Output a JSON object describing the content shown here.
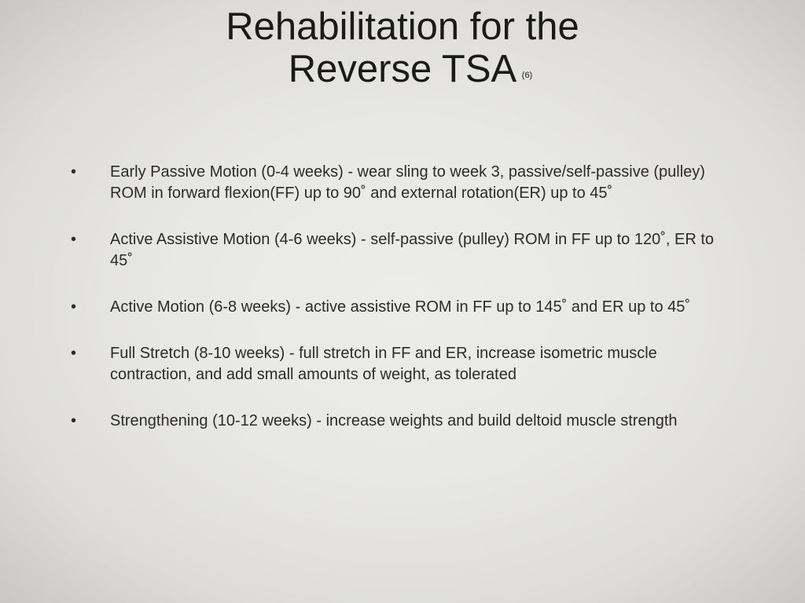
{
  "slide": {
    "title_line1": "Rehabilitation for the",
    "title_line2": "Reverse TSA",
    "superscript": "(6)",
    "title_fontsize": 49,
    "bullet_marker": "•",
    "bullets": [
      "Early Passive Motion (0-4 weeks) - wear sling to week 3, passive/self-passive (pulley) ROM in forward flexion(FF) up to 90˚ and external rotation(ER) up to 45˚",
      "Active Assistive Motion (4-6 weeks) - self-passive (pulley) ROM in FF up to 120˚, ER to 45˚",
      "Active Motion (6-8 weeks) - active assistive ROM in FF up to 145˚ and ER up to 45˚",
      "Full Stretch (8-10 weeks) - full stretch in FF and ER, increase isometric muscle contraction, and add small amounts of weight, as tolerated",
      "Strengthening (10-12 weeks) - increase weights and build deltoid muscle strength"
    ],
    "bullet_fontsize": 20,
    "text_color": "#2b2b2b",
    "background_gradient": {
      "center": "#ececea",
      "mid": "#e8e8e6",
      "outer": "#dddcda",
      "edge": "#c8c7c4"
    }
  }
}
